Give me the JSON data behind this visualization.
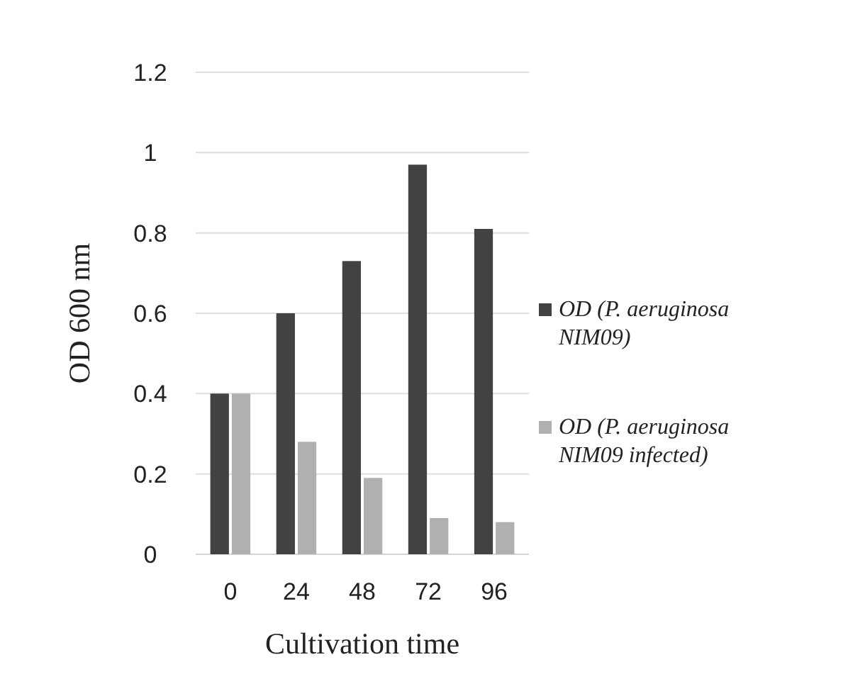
{
  "chart_data": {
    "type": "bar",
    "xlabel": "Cultivation time",
    "ylabel": "OD 600 nm",
    "categories": [
      "0",
      "24",
      "48",
      "72",
      "96"
    ],
    "series": [
      {
        "name": "OD (P. aeruginosa NIM09)",
        "color": "#404244",
        "values": [
          0.4,
          0.6,
          0.73,
          0.97,
          0.81
        ]
      },
      {
        "name": "OD (P. aeruginosa NIM09 infected)",
        "color": "#b0b0b0",
        "values": [
          0.4,
          0.28,
          0.19,
          0.09,
          0.08
        ]
      }
    ],
    "ylim": [
      0,
      1.2
    ],
    "yticks": [
      0,
      0.2,
      0.4,
      0.6,
      0.8,
      1,
      1.2
    ],
    "grid": "y",
    "legend": "right"
  }
}
